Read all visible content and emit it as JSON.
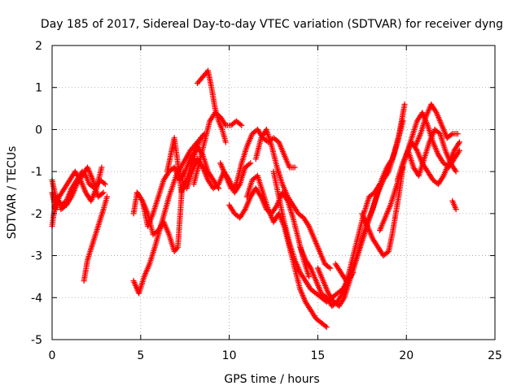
{
  "chart_data": {
    "type": "scatter",
    "title": "Day 185 of 2017, Sidereal Day-to-day VTEC variation (SDTVAR) for receiver dyng",
    "xlabel": "GPS time / hours",
    "ylabel": "SDTVAR / TECUs",
    "xlim": [
      0,
      25
    ],
    "ylim": [
      -5,
      2
    ],
    "xticks": [
      "0",
      "5",
      "10",
      "15",
      "20",
      "25"
    ],
    "yticks": [
      "-5",
      "-4",
      "-3",
      "-2",
      "-1",
      "0",
      "1",
      "2"
    ],
    "grid": true,
    "marker": "plus",
    "color": "#ff0000",
    "traces": [
      {
        "x": [
          0.0,
          0.2,
          0.5,
          0.8,
          1.1,
          1.4,
          1.7,
          1.9,
          2.1,
          2.4,
          2.7,
          3.0
        ],
        "y": [
          -1.2,
          -1.6,
          -1.8,
          -1.7,
          -1.4,
          -1.2,
          -1.0,
          -1.1,
          -1.3,
          -1.4,
          -1.2,
          -1.3
        ]
      },
      {
        "x": [
          0.0,
          0.2,
          0.4,
          0.7,
          1.0,
          1.3,
          1.6,
          1.9,
          2.2,
          2.5,
          2.8
        ],
        "y": [
          -1.5,
          -1.9,
          -1.6,
          -1.4,
          -1.2,
          -1.0,
          -1.2,
          -1.5,
          -1.7,
          -1.4,
          -0.9
        ]
      },
      {
        "x": [
          0.0,
          0.1,
          0.3,
          0.5,
          0.8,
          1.1,
          1.4,
          1.7,
          2.0,
          2.3,
          2.6,
          2.9
        ],
        "y": [
          -2.3,
          -2.0,
          -1.6,
          -1.9,
          -1.8,
          -1.6,
          -1.3,
          -1.1,
          -0.9,
          -1.2,
          -1.6,
          -1.5
        ]
      },
      {
        "x": [
          1.8,
          2.0,
          2.3,
          2.6,
          2.9,
          3.1
        ],
        "y": [
          -3.6,
          -3.1,
          -2.7,
          -2.3,
          -1.9,
          -1.6
        ]
      },
      {
        "x": [
          4.6,
          4.9,
          5.2,
          5.5,
          5.8,
          6.2,
          6.6,
          7.0,
          7.4,
          7.8,
          8.2,
          8.6
        ],
        "y": [
          -3.6,
          -3.9,
          -3.5,
          -3.2,
          -2.8,
          -2.2,
          -1.6,
          -1.1,
          -0.8,
          -0.5,
          -0.3,
          -0.1
        ]
      },
      {
        "x": [
          4.6,
          4.8,
          5.1,
          5.4,
          5.7,
          6.0,
          6.3,
          6.6,
          6.9,
          7.2,
          7.5,
          7.8,
          8.1,
          8.4
        ],
        "y": [
          -2.0,
          -1.5,
          -1.7,
          -2.3,
          -2.0,
          -1.6,
          -1.2,
          -1.0,
          -0.9,
          -1.2,
          -1.0,
          -0.7,
          -0.5,
          -0.2
        ]
      },
      {
        "x": [
          4.8,
          5.1,
          5.4,
          5.7,
          6.0,
          6.3,
          6.6,
          6.9,
          7.1,
          7.4
        ],
        "y": [
          -1.5,
          -1.7,
          -2.0,
          -2.5,
          -2.4,
          -2.2,
          -2.5,
          -2.9,
          -2.8,
          -1.0
        ]
      },
      {
        "x": [
          6.5,
          6.7,
          6.9,
          7.1,
          7.3,
          7.6,
          7.9,
          8.2,
          8.5,
          8.8,
          9.1,
          9.4
        ],
        "y": [
          -1.0,
          -0.6,
          -0.2,
          -0.8,
          -1.5,
          -1.2,
          -0.8,
          -0.4,
          -0.6,
          -1.0,
          -1.2,
          -1.4
        ]
      },
      {
        "x": [
          8.2,
          8.4,
          8.6,
          8.8,
          9.0,
          9.2,
          9.4,
          9.6,
          9.8
        ],
        "y": [
          1.1,
          1.2,
          1.3,
          1.4,
          1.0,
          0.5,
          0.2,
          0.0,
          -0.3
        ]
      },
      {
        "x": [
          8.0,
          8.3,
          8.6,
          8.9,
          9.2,
          9.5,
          9.8,
          10.1,
          10.4,
          10.7
        ],
        "y": [
          -1.3,
          -0.8,
          -0.3,
          0.2,
          0.4,
          0.3,
          0.1,
          0.1,
          0.2,
          0.1
        ]
      },
      {
        "x": [
          7.6,
          7.9,
          8.2,
          8.5,
          8.8,
          9.1,
          9.4,
          9.7,
          10.0,
          10.3,
          10.6,
          10.9,
          11.2
        ],
        "y": [
          -1.4,
          -1.0,
          -0.7,
          -0.9,
          -1.2,
          -1.4,
          -1.3,
          -1.0,
          -1.2,
          -1.5,
          -1.3,
          -0.9,
          -0.8
        ]
      },
      {
        "x": [
          9.5,
          9.8,
          10.1,
          10.4,
          10.7,
          11.0,
          11.3,
          11.6,
          11.9,
          12.2,
          12.5,
          12.8,
          13.1,
          13.4,
          13.7
        ],
        "y": [
          -0.8,
          -1.1,
          -1.4,
          -1.3,
          -0.8,
          -0.4,
          -0.1,
          0.0,
          -0.2,
          -0.3,
          -0.2,
          -0.3,
          -0.6,
          -0.9,
          -0.9
        ]
      },
      {
        "x": [
          11.5,
          11.8,
          12.1,
          12.4,
          12.7,
          13.0,
          13.3,
          13.6,
          13.9,
          14.2,
          14.5,
          14.8,
          15.1,
          15.4,
          15.7
        ],
        "y": [
          -0.7,
          -0.2,
          0.0,
          -0.4,
          -0.9,
          -1.3,
          -1.6,
          -1.8,
          -2.0,
          -2.1,
          -2.3,
          -2.6,
          -2.9,
          -3.2,
          -3.3
        ]
      },
      {
        "x": [
          10.0,
          10.3,
          10.6,
          10.9,
          11.2,
          11.5,
          11.8,
          12.1,
          12.4,
          12.7,
          13.0,
          13.3,
          13.6,
          13.9,
          14.2,
          14.5
        ],
        "y": [
          -1.8,
          -2.0,
          -2.1,
          -1.9,
          -1.6,
          -1.4,
          -1.6,
          -1.9,
          -2.0,
          -1.8,
          -1.5,
          -1.7,
          -2.1,
          -2.6,
          -3.1,
          -3.5
        ]
      },
      {
        "x": [
          11.0,
          11.3,
          11.6,
          11.9,
          12.2,
          12.5,
          12.8,
          13.1,
          13.4,
          13.7,
          14.0,
          14.3,
          14.6,
          14.9,
          15.2,
          15.5
        ],
        "y": [
          -1.6,
          -1.2,
          -1.1,
          -1.5,
          -1.9,
          -2.2,
          -2.0,
          -2.3,
          -2.8,
          -3.3,
          -3.8,
          -4.1,
          -4.3,
          -4.5,
          -4.6,
          -4.7
        ]
      },
      {
        "x": [
          12.5,
          12.8,
          13.1,
          13.4,
          13.7,
          14.0,
          14.3,
          14.6,
          14.9,
          15.2,
          15.5,
          15.8,
          16.1,
          16.4,
          16.7,
          17.0
        ],
        "y": [
          -1.0,
          -1.6,
          -2.2,
          -2.7,
          -3.1,
          -3.4,
          -3.6,
          -3.8,
          -3.9,
          -4.0,
          -4.1,
          -4.0,
          -3.9,
          -3.8,
          -3.6,
          -3.4
        ]
      },
      {
        "x": [
          14.0,
          14.3,
          14.6,
          14.9,
          15.2,
          15.5,
          15.8,
          16.1,
          16.4,
          16.7,
          17.0,
          17.3,
          17.6,
          17.9,
          18.2,
          18.5
        ],
        "y": [
          -2.8,
          -3.1,
          -3.3,
          -3.6,
          -3.9,
          -4.0,
          -4.2,
          -4.1,
          -3.9,
          -3.5,
          -3.0,
          -2.5,
          -2.0,
          -1.6,
          -1.5,
          -1.3
        ]
      },
      {
        "x": [
          15.0,
          15.3,
          15.6,
          15.9,
          16.2,
          16.5,
          16.8,
          17.1,
          17.4,
          17.7,
          18.0,
          18.3,
          18.6,
          18.9,
          19.2,
          19.5,
          19.8
        ],
        "y": [
          -3.3,
          -3.6,
          -3.9,
          -4.1,
          -4.2,
          -4.0,
          -3.6,
          -3.2,
          -2.8,
          -2.4,
          -2.0,
          -1.6,
          -1.2,
          -0.9,
          -0.7,
          -0.3,
          0.2
        ]
      },
      {
        "x": [
          16.0,
          16.3,
          16.6,
          16.9,
          17.2,
          17.5,
          17.8,
          18.1,
          18.4,
          18.7,
          19.0,
          19.3,
          19.6,
          19.9
        ],
        "y": [
          -3.2,
          -3.4,
          -3.6,
          -3.4,
          -3.0,
          -2.6,
          -2.2,
          -1.9,
          -1.5,
          -1.2,
          -1.0,
          -0.6,
          -0.1,
          0.6
        ]
      },
      {
        "x": [
          17.5,
          17.8,
          18.1,
          18.4,
          18.7,
          19.0,
          19.2,
          19.4,
          19.6,
          19.8
        ],
        "y": [
          -2.0,
          -2.3,
          -2.6,
          -2.8,
          -3.0,
          -2.9,
          -2.5,
          -2.0,
          -1.5,
          -0.9
        ]
      },
      {
        "x": [
          18.5,
          18.8,
          19.1,
          19.4,
          19.7,
          20.0,
          20.3,
          20.6,
          20.9,
          21.2,
          21.5,
          21.8,
          22.1,
          22.4,
          22.7,
          23.0
        ],
        "y": [
          -2.4,
          -2.1,
          -1.8,
          -1.4,
          -1.0,
          -0.6,
          -0.3,
          -0.5,
          -0.8,
          -1.0,
          -1.2,
          -1.3,
          -1.1,
          -0.8,
          -0.5,
          -0.3
        ]
      },
      {
        "x": [
          19.5,
          19.8,
          20.1,
          20.4,
          20.7,
          21.0,
          21.3,
          21.6,
          21.9,
          22.2,
          22.5,
          22.8
        ],
        "y": [
          -1.2,
          -0.8,
          -0.5,
          -0.9,
          -1.1,
          -0.7,
          -0.3,
          0.0,
          -0.1,
          -0.5,
          -0.8,
          -1.0
        ]
      },
      {
        "x": [
          20.0,
          20.3,
          20.6,
          20.9,
          21.2,
          21.5,
          21.8,
          22.1,
          22.4,
          22.7,
          23.0
        ],
        "y": [
          -0.6,
          -0.2,
          0.2,
          0.4,
          0.1,
          -0.3,
          -0.6,
          -0.8,
          -0.9,
          -0.7,
          -0.5
        ]
      },
      {
        "x": [
          20.5,
          20.8,
          21.1,
          21.4,
          21.7,
          22.0,
          22.3,
          22.6,
          22.9
        ],
        "y": [
          -0.4,
          -0.1,
          0.3,
          0.6,
          0.4,
          0.1,
          -0.2,
          -0.1,
          -0.1
        ]
      },
      {
        "x": [
          22.6,
          22.8
        ],
        "y": [
          -1.7,
          -1.9
        ]
      }
    ]
  }
}
